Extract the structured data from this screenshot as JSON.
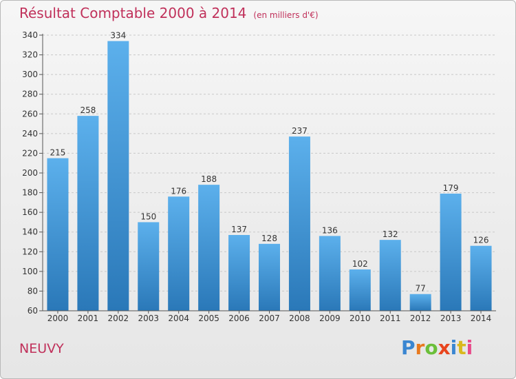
{
  "header": {
    "title": "Résultat Comptable 2000 à 2014",
    "subtitle": "(en milliers d'€)"
  },
  "footer": {
    "place": "NEUVY",
    "logo": {
      "letters": [
        "P",
        "r",
        "o",
        "x",
        "i",
        "t",
        "i"
      ],
      "colors": [
        "#3a86d1",
        "#e8791e",
        "#6bbf3a",
        "#e8451e",
        "#3a86d1",
        "#d9b91e",
        "#e84b8a"
      ]
    }
  },
  "colors": {
    "bar_top": "#5cb0ec",
    "bar_bottom": "#2a78b8",
    "title": "#c0305a"
  },
  "chart_data": {
    "type": "bar",
    "title": "Résultat Comptable 2000 à 2014",
    "subtitle": "(en milliers d'€)",
    "xlabel": "",
    "ylabel": "",
    "categories": [
      "2000",
      "2001",
      "2002",
      "2003",
      "2004",
      "2005",
      "2006",
      "2007",
      "2008",
      "2009",
      "2010",
      "2011",
      "2012",
      "2013",
      "2014"
    ],
    "values": [
      215,
      258,
      334,
      150,
      176,
      188,
      137,
      128,
      237,
      136,
      102,
      132,
      77,
      179,
      126
    ],
    "ylim": [
      60,
      340
    ],
    "yticks": [
      60,
      80,
      100,
      120,
      140,
      160,
      180,
      200,
      220,
      240,
      260,
      280,
      300,
      320,
      340
    ],
    "grid": true,
    "data_labels": true
  }
}
